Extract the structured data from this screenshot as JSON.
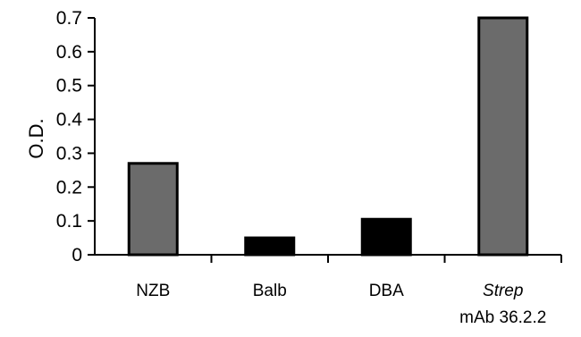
{
  "chart_data": {
    "type": "bar",
    "ylabel": "O.D.",
    "xlabel": "",
    "ylim": [
      0,
      0.7
    ],
    "yticks": [
      0,
      0.1,
      0.2,
      0.3,
      0.4,
      0.5,
      0.6,
      0.7
    ],
    "grid": false,
    "categories": [
      {
        "line1": "NZB",
        "line2": "",
        "line1_italic": false
      },
      {
        "line1": "Balb",
        "line2": "",
        "line1_italic": false
      },
      {
        "line1": "DBA",
        "line2": "",
        "line1_italic": false
      },
      {
        "line1": "Strep",
        "line2": "mAb 36.2.2",
        "line1_italic": true
      }
    ],
    "values": [
      0.27,
      0.05,
      0.105,
      0.7
    ],
    "bar_colors": [
      "#6b6b6b",
      "#000000",
      "#000000",
      "#6b6b6b"
    ]
  }
}
